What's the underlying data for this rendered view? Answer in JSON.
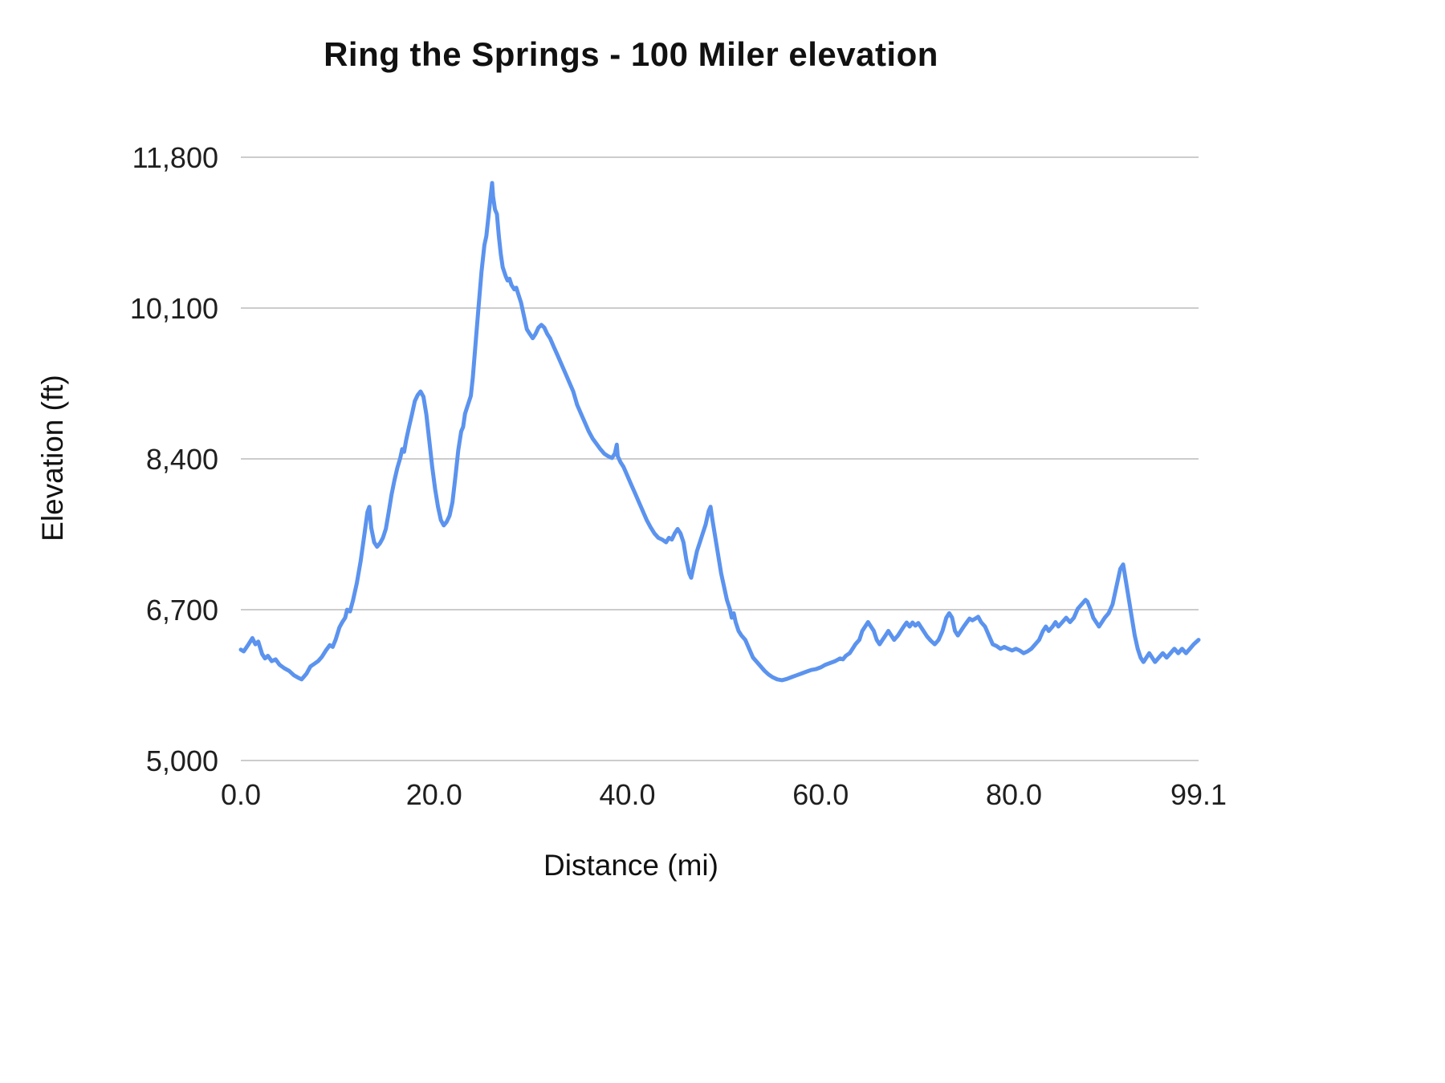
{
  "chart_data": {
    "type": "line",
    "title": "Ring the Springs - 100 Miler elevation",
    "xlabel": "Distance (mi)",
    "ylabel": "Elevation (ft)",
    "xlim": [
      0,
      99.1
    ],
    "ylim": [
      5000,
      11800
    ],
    "grid": "horizontal-only",
    "legend": "none",
    "line_color": "#5b93ee",
    "gridline_color": "#cccccc",
    "yticks": [
      5000,
      6700,
      8400,
      10100,
      11800
    ],
    "ytick_labels": [
      "5,000",
      "6,700",
      "8,400",
      "10,100",
      "11,800"
    ],
    "xticks": [
      0,
      20,
      40,
      60,
      80,
      99.1
    ],
    "xtick_labels": [
      "0.0",
      "20.0",
      "40.0",
      "60.0",
      "80.0",
      "99.1"
    ],
    "series": [
      {
        "name": "Elevation",
        "points": [
          [
            0,
            6250
          ],
          [
            0.3,
            6230
          ],
          [
            0.8,
            6310
          ],
          [
            1.2,
            6380
          ],
          [
            1.5,
            6310
          ],
          [
            1.8,
            6340
          ],
          [
            2.2,
            6200
          ],
          [
            2.5,
            6150
          ],
          [
            2.8,
            6180
          ],
          [
            3.2,
            6120
          ],
          [
            3.6,
            6140
          ],
          [
            4,
            6080
          ],
          [
            4.5,
            6040
          ],
          [
            5,
            6010
          ],
          [
            5.5,
            5960
          ],
          [
            6,
            5930
          ],
          [
            6.3,
            5915
          ],
          [
            6.8,
            5980
          ],
          [
            7.2,
            6060
          ],
          [
            7.6,
            6090
          ],
          [
            8,
            6120
          ],
          [
            8.4,
            6170
          ],
          [
            8.8,
            6240
          ],
          [
            9.2,
            6300
          ],
          [
            9.5,
            6280
          ],
          [
            9.8,
            6360
          ],
          [
            10.2,
            6500
          ],
          [
            10.5,
            6560
          ],
          [
            10.8,
            6610
          ],
          [
            11,
            6700
          ],
          [
            11.3,
            6680
          ],
          [
            11.6,
            6800
          ],
          [
            12,
            7000
          ],
          [
            12.4,
            7250
          ],
          [
            12.8,
            7560
          ],
          [
            13.1,
            7800
          ],
          [
            13.3,
            7860
          ],
          [
            13.5,
            7620
          ],
          [
            13.8,
            7460
          ],
          [
            14.1,
            7410
          ],
          [
            14.4,
            7450
          ],
          [
            14.7,
            7510
          ],
          [
            15,
            7610
          ],
          [
            15.3,
            7800
          ],
          [
            15.6,
            8000
          ],
          [
            15.9,
            8160
          ],
          [
            16.2,
            8300
          ],
          [
            16.5,
            8410
          ],
          [
            16.7,
            8510
          ],
          [
            16.9,
            8480
          ],
          [
            17.1,
            8610
          ],
          [
            17.4,
            8760
          ],
          [
            17.7,
            8900
          ],
          [
            18,
            9050
          ],
          [
            18.3,
            9120
          ],
          [
            18.6,
            9160
          ],
          [
            18.9,
            9100
          ],
          [
            19.2,
            8900
          ],
          [
            19.5,
            8610
          ],
          [
            19.8,
            8310
          ],
          [
            20.1,
            8060
          ],
          [
            20.4,
            7860
          ],
          [
            20.7,
            7710
          ],
          [
            21,
            7650
          ],
          [
            21.3,
            7690
          ],
          [
            21.6,
            7760
          ],
          [
            21.9,
            7910
          ],
          [
            22.2,
            8200
          ],
          [
            22.5,
            8500
          ],
          [
            22.8,
            8710
          ],
          [
            23,
            8760
          ],
          [
            23.2,
            8910
          ],
          [
            23.5,
            9010
          ],
          [
            23.8,
            9110
          ],
          [
            24,
            9310
          ],
          [
            24.3,
            9710
          ],
          [
            24.6,
            10110
          ],
          [
            24.9,
            10510
          ],
          [
            25.2,
            10810
          ],
          [
            25.4,
            10910
          ],
          [
            25.6,
            11110
          ],
          [
            25.8,
            11310
          ],
          [
            26,
            11510
          ],
          [
            26.1,
            11360
          ],
          [
            26.3,
            11210
          ],
          [
            26.5,
            11160
          ],
          [
            26.7,
            10910
          ],
          [
            26.9,
            10710
          ],
          [
            27.1,
            10560
          ],
          [
            27.4,
            10460
          ],
          [
            27.6,
            10410
          ],
          [
            27.8,
            10430
          ],
          [
            28,
            10360
          ],
          [
            28.3,
            10310
          ],
          [
            28.5,
            10330
          ],
          [
            28.7,
            10260
          ],
          [
            29,
            10160
          ],
          [
            29.3,
            10010
          ],
          [
            29.6,
            9860
          ],
          [
            29.9,
            9810
          ],
          [
            30.2,
            9760
          ],
          [
            30.5,
            9810
          ],
          [
            30.8,
            9880
          ],
          [
            31.1,
            9910
          ],
          [
            31.4,
            9880
          ],
          [
            31.7,
            9810
          ],
          [
            32,
            9760
          ],
          [
            32.4,
            9660
          ],
          [
            32.8,
            9560
          ],
          [
            33.2,
            9460
          ],
          [
            33.6,
            9360
          ],
          [
            34,
            9260
          ],
          [
            34.4,
            9160
          ],
          [
            34.8,
            9010
          ],
          [
            35.2,
            8910
          ],
          [
            35.6,
            8810
          ],
          [
            36,
            8710
          ],
          [
            36.4,
            8630
          ],
          [
            36.8,
            8570
          ],
          [
            37.2,
            8510
          ],
          [
            37.6,
            8460
          ],
          [
            38,
            8430
          ],
          [
            38.4,
            8410
          ],
          [
            38.7,
            8460
          ],
          [
            38.9,
            8560
          ],
          [
            39,
            8430
          ],
          [
            39.3,
            8360
          ],
          [
            39.6,
            8310
          ],
          [
            40,
            8210
          ],
          [
            40.4,
            8110
          ],
          [
            40.8,
            8010
          ],
          [
            41.2,
            7910
          ],
          [
            41.6,
            7810
          ],
          [
            42,
            7710
          ],
          [
            42.4,
            7630
          ],
          [
            42.8,
            7560
          ],
          [
            43.2,
            7510
          ],
          [
            43.6,
            7490
          ],
          [
            44,
            7460
          ],
          [
            44.3,
            7510
          ],
          [
            44.6,
            7490
          ],
          [
            44.9,
            7560
          ],
          [
            45.2,
            7610
          ],
          [
            45.5,
            7560
          ],
          [
            45.8,
            7460
          ],
          [
            46.1,
            7260
          ],
          [
            46.4,
            7110
          ],
          [
            46.6,
            7060
          ],
          [
            46.9,
            7210
          ],
          [
            47.2,
            7360
          ],
          [
            47.5,
            7460
          ],
          [
            47.8,
            7560
          ],
          [
            48.1,
            7660
          ],
          [
            48.4,
            7810
          ],
          [
            48.6,
            7860
          ],
          [
            48.8,
            7710
          ],
          [
            49.1,
            7510
          ],
          [
            49.4,
            7310
          ],
          [
            49.7,
            7110
          ],
          [
            50,
            6960
          ],
          [
            50.3,
            6810
          ],
          [
            50.6,
            6710
          ],
          [
            50.8,
            6610
          ],
          [
            51,
            6660
          ],
          [
            51.2,
            6560
          ],
          [
            51.5,
            6460
          ],
          [
            51.8,
            6410
          ],
          [
            52.2,
            6360
          ],
          [
            52.6,
            6260
          ],
          [
            53,
            6160
          ],
          [
            53.4,
            6110
          ],
          [
            53.8,
            6060
          ],
          [
            54.2,
            6010
          ],
          [
            54.6,
            5970
          ],
          [
            55,
            5940
          ],
          [
            55.5,
            5915
          ],
          [
            56,
            5905
          ],
          [
            56.5,
            5920
          ],
          [
            57,
            5940
          ],
          [
            57.5,
            5960
          ],
          [
            58,
            5980
          ],
          [
            58.5,
            6000
          ],
          [
            59,
            6020
          ],
          [
            59.5,
            6030
          ],
          [
            60,
            6050
          ],
          [
            60.5,
            6080
          ],
          [
            61,
            6100
          ],
          [
            61.5,
            6120
          ],
          [
            62,
            6150
          ],
          [
            62.3,
            6140
          ],
          [
            62.6,
            6180
          ],
          [
            63,
            6210
          ],
          [
            63.3,
            6260
          ],
          [
            63.6,
            6310
          ],
          [
            64,
            6360
          ],
          [
            64.3,
            6460
          ],
          [
            64.6,
            6510
          ],
          [
            64.9,
            6560
          ],
          [
            65.2,
            6510
          ],
          [
            65.5,
            6460
          ],
          [
            65.8,
            6360
          ],
          [
            66.1,
            6310
          ],
          [
            66.4,
            6360
          ],
          [
            66.7,
            6410
          ],
          [
            67,
            6460
          ],
          [
            67.3,
            6410
          ],
          [
            67.6,
            6360
          ],
          [
            68,
            6410
          ],
          [
            68.3,
            6460
          ],
          [
            68.6,
            6510
          ],
          [
            68.9,
            6555
          ],
          [
            69.2,
            6510
          ],
          [
            69.5,
            6555
          ],
          [
            69.8,
            6520
          ],
          [
            70.1,
            6550
          ],
          [
            70.4,
            6500
          ],
          [
            70.7,
            6450
          ],
          [
            71,
            6400
          ],
          [
            71.4,
            6350
          ],
          [
            71.8,
            6310
          ],
          [
            72.2,
            6360
          ],
          [
            72.6,
            6460
          ],
          [
            73,
            6610
          ],
          [
            73.3,
            6660
          ],
          [
            73.6,
            6610
          ],
          [
            73.9,
            6460
          ],
          [
            74.2,
            6410
          ],
          [
            74.5,
            6460
          ],
          [
            74.8,
            6510
          ],
          [
            75.1,
            6555
          ],
          [
            75.4,
            6600
          ],
          [
            75.7,
            6580
          ],
          [
            76,
            6600
          ],
          [
            76.3,
            6620
          ],
          [
            76.6,
            6560
          ],
          [
            77,
            6510
          ],
          [
            77.4,
            6410
          ],
          [
            77.8,
            6310
          ],
          [
            78.2,
            6290
          ],
          [
            78.6,
            6260
          ],
          [
            79,
            6280
          ],
          [
            79.4,
            6260
          ],
          [
            79.8,
            6240
          ],
          [
            80.2,
            6260
          ],
          [
            80.6,
            6240
          ],
          [
            81,
            6210
          ],
          [
            81.4,
            6230
          ],
          [
            81.8,
            6260
          ],
          [
            82.2,
            6310
          ],
          [
            82.6,
            6360
          ],
          [
            83,
            6460
          ],
          [
            83.3,
            6510
          ],
          [
            83.6,
            6460
          ],
          [
            84,
            6510
          ],
          [
            84.3,
            6560
          ],
          [
            84.6,
            6510
          ],
          [
            85,
            6560
          ],
          [
            85.4,
            6610
          ],
          [
            85.8,
            6560
          ],
          [
            86.2,
            6610
          ],
          [
            86.6,
            6710
          ],
          [
            87,
            6760
          ],
          [
            87.4,
            6810
          ],
          [
            87.6,
            6790
          ],
          [
            87.9,
            6710
          ],
          [
            88.2,
            6610
          ],
          [
            88.5,
            6560
          ],
          [
            88.8,
            6510
          ],
          [
            89.1,
            6560
          ],
          [
            89.4,
            6610
          ],
          [
            89.8,
            6660
          ],
          [
            90.2,
            6760
          ],
          [
            90.6,
            6960
          ],
          [
            91,
            7160
          ],
          [
            91.3,
            7210
          ],
          [
            91.6,
            7010
          ],
          [
            91.9,
            6810
          ],
          [
            92.2,
            6610
          ],
          [
            92.5,
            6410
          ],
          [
            92.8,
            6260
          ],
          [
            93.1,
            6160
          ],
          [
            93.4,
            6110
          ],
          [
            93.7,
            6160
          ],
          [
            94,
            6210
          ],
          [
            94.3,
            6160
          ],
          [
            94.6,
            6110
          ],
          [
            95,
            6160
          ],
          [
            95.4,
            6210
          ],
          [
            95.8,
            6160
          ],
          [
            96.2,
            6210
          ],
          [
            96.6,
            6260
          ],
          [
            97,
            6210
          ],
          [
            97.4,
            6260
          ],
          [
            97.8,
            6210
          ],
          [
            98.2,
            6260
          ],
          [
            98.6,
            6310
          ],
          [
            99.1,
            6360
          ]
        ]
      }
    ]
  }
}
